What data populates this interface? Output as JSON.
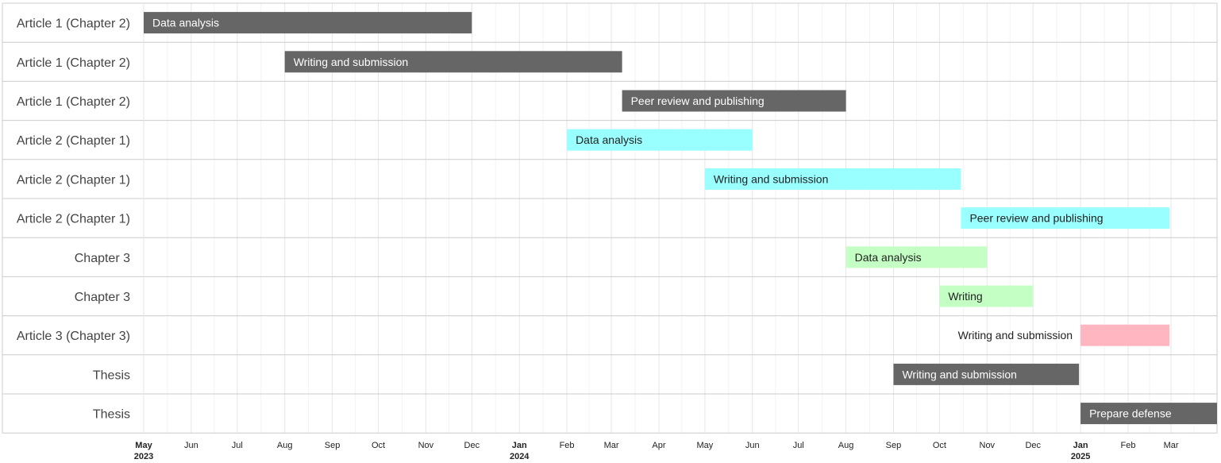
{
  "chart_data": {
    "type": "gantt",
    "x_range": [
      "2023-05-01",
      "2025-03-31"
    ],
    "grid": true,
    "colors": {
      "dark": "#666666",
      "cyan": "#99ffff",
      "green": "#c4ffc4",
      "pink": "#ffb6c1"
    },
    "tasks": [
      {
        "row": "Article 1 (Chapter 2)",
        "label": "Data analysis",
        "start": "2023-05-01",
        "end": "2023-12-01",
        "color": "dark",
        "label_outside": false
      },
      {
        "row": "Article 1 (Chapter 2)",
        "label": "Writing and submission",
        "start": "2023-08-01",
        "end": "2024-03-08",
        "color": "dark",
        "label_outside": false
      },
      {
        "row": "Article 1 (Chapter 2)",
        "label": "Peer review and publishing",
        "start": "2024-03-08",
        "end": "2024-08-01",
        "color": "dark",
        "label_outside": false
      },
      {
        "row": "Article 2 (Chapter 1)",
        "label": "Data analysis",
        "start": "2024-02-01",
        "end": "2024-06-01",
        "color": "cyan",
        "label_outside": false
      },
      {
        "row": "Article 2 (Chapter 1)",
        "label": "Writing and submission",
        "start": "2024-05-01",
        "end": "2024-10-15",
        "color": "cyan",
        "label_outside": false
      },
      {
        "row": "Article 2 (Chapter 1)",
        "label": "Peer review and publishing",
        "start": "2024-10-15",
        "end": "2025-02-28",
        "color": "cyan",
        "label_outside": false
      },
      {
        "row": "Chapter 3",
        "label": "Data analysis",
        "start": "2024-08-01",
        "end": "2024-11-01",
        "color": "green",
        "label_outside": false
      },
      {
        "row": "Chapter 3",
        "label": "Writing",
        "start": "2024-10-01",
        "end": "2024-12-01",
        "color": "green",
        "label_outside": false
      },
      {
        "row": "Article 3 (Chapter 3)",
        "label": "Writing and submission",
        "start": "2025-01-01",
        "end": "2025-02-28",
        "color": "pink",
        "label_outside": true
      },
      {
        "row": "Thesis",
        "label": "Writing and submission",
        "start": "2024-09-01",
        "end": "2024-12-31",
        "color": "dark",
        "label_outside": false
      },
      {
        "row": "Thesis",
        "label": "Prepare defense",
        "start": "2025-01-01",
        "end": "2025-03-31",
        "color": "dark",
        "label_outside": false
      }
    ],
    "x_ticks": [
      {
        "date": "2023-05-01",
        "label": "May",
        "year": "2023"
      },
      {
        "date": "2023-06-01",
        "label": "Jun"
      },
      {
        "date": "2023-07-01",
        "label": "Jul"
      },
      {
        "date": "2023-08-01",
        "label": "Aug"
      },
      {
        "date": "2023-09-01",
        "label": "Sep"
      },
      {
        "date": "2023-10-01",
        "label": "Oct"
      },
      {
        "date": "2023-11-01",
        "label": "Nov"
      },
      {
        "date": "2023-12-01",
        "label": "Dec"
      },
      {
        "date": "2024-01-01",
        "label": "Jan",
        "year": "2024"
      },
      {
        "date": "2024-02-01",
        "label": "Feb"
      },
      {
        "date": "2024-03-01",
        "label": "Mar"
      },
      {
        "date": "2024-04-01",
        "label": "Apr"
      },
      {
        "date": "2024-05-01",
        "label": "May"
      },
      {
        "date": "2024-06-01",
        "label": "Jun"
      },
      {
        "date": "2024-07-01",
        "label": "Jul"
      },
      {
        "date": "2024-08-01",
        "label": "Aug"
      },
      {
        "date": "2024-09-01",
        "label": "Sep"
      },
      {
        "date": "2024-10-01",
        "label": "Oct"
      },
      {
        "date": "2024-11-01",
        "label": "Nov"
      },
      {
        "date": "2024-12-01",
        "label": "Dec"
      },
      {
        "date": "2025-01-01",
        "label": "Jan",
        "year": "2025"
      },
      {
        "date": "2025-02-01",
        "label": "Feb"
      },
      {
        "date": "2025-03-01",
        "label": "Mar"
      }
    ]
  }
}
